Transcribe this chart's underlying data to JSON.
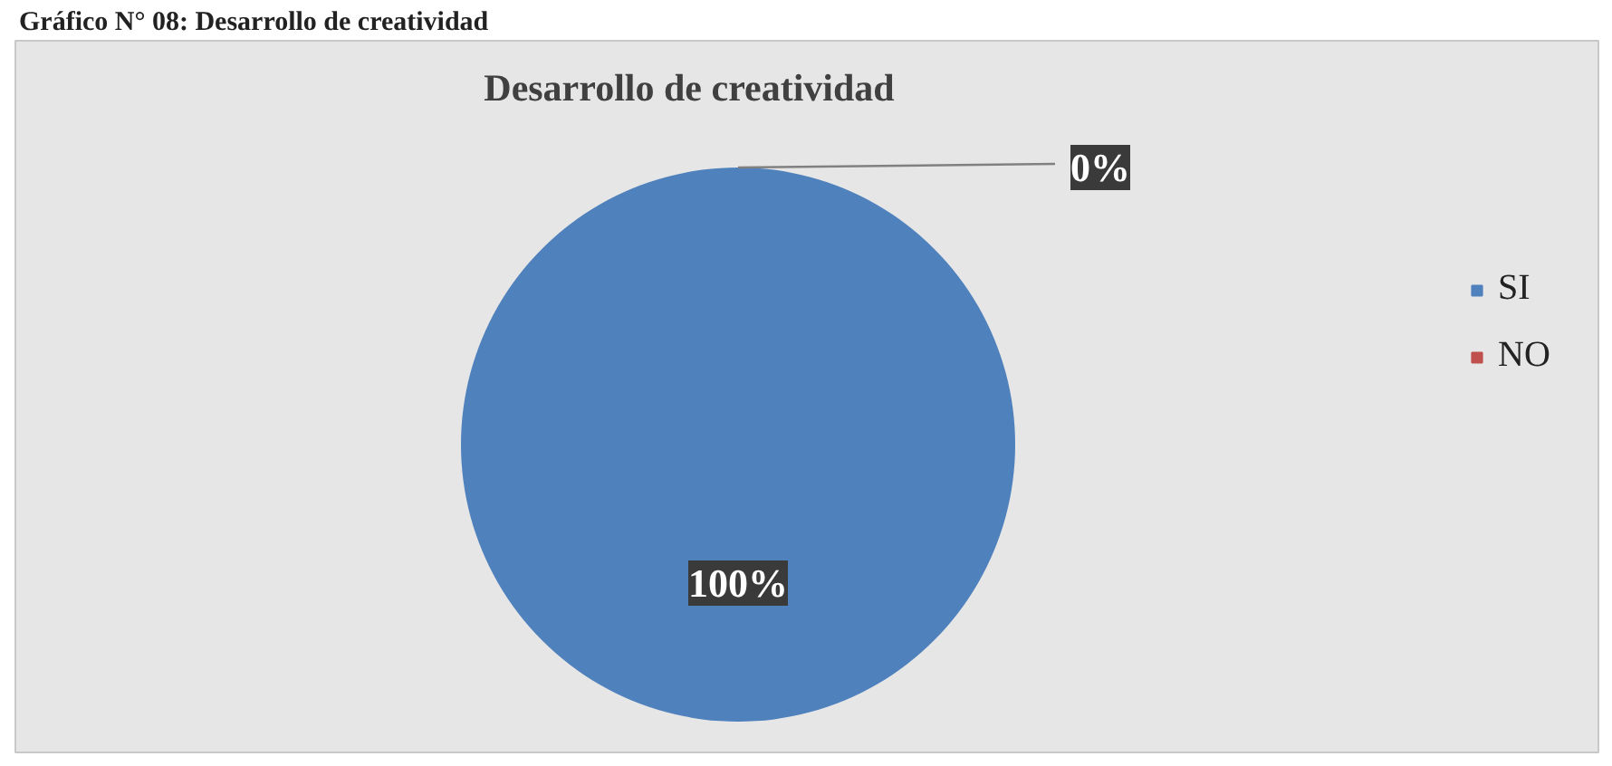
{
  "chart_data": {
    "type": "pie",
    "title": "Desarrollo de creatividad",
    "annotations": [
      "Gráfico N° 08: Desarrollo de creatividad"
    ],
    "categories": [
      "SI",
      "NO"
    ],
    "values": [
      100,
      0
    ],
    "colors": [
      "#4f81bd",
      "#c0504d"
    ],
    "value_labels": [
      "100%",
      "0%"
    ],
    "legend": "right"
  }
}
